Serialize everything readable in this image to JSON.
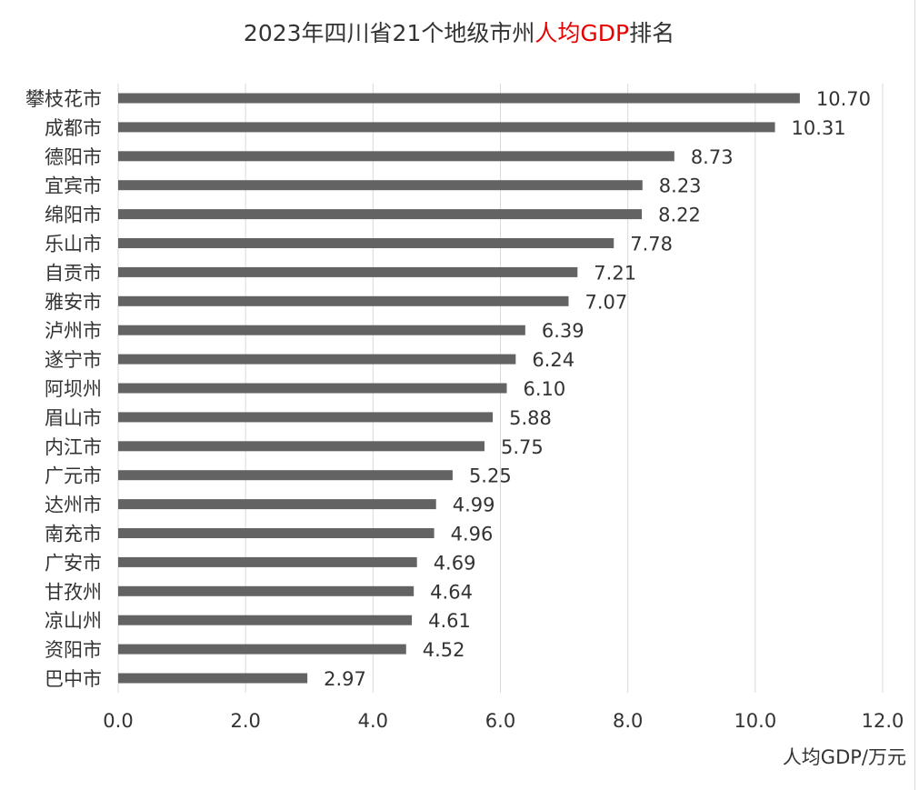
{
  "chart_data": {
    "type": "bar",
    "orientation": "horizontal",
    "title_parts": [
      {
        "text": "2023年四川省21个地级市州",
        "color": "#333333"
      },
      {
        "text": "人均GDP",
        "color": "#e60000"
      },
      {
        "text": "排名",
        "color": "#333333"
      }
    ],
    "categories": [
      "攀枝花市",
      "成都市",
      "德阳市",
      "宜宾市",
      "绵阳市",
      "乐山市",
      "自贡市",
      "雅安市",
      "泸州市",
      "遂宁市",
      "阿坝州",
      "眉山市",
      "内江市",
      "广元市",
      "达州市",
      "南充市",
      "广安市",
      "甘孜州",
      "凉山州",
      "资阳市",
      "巴中市"
    ],
    "values": [
      10.7,
      10.31,
      8.73,
      8.23,
      8.22,
      7.78,
      7.21,
      7.07,
      6.39,
      6.24,
      6.1,
      5.88,
      5.75,
      5.25,
      4.99,
      4.96,
      4.69,
      4.64,
      4.61,
      4.52,
      2.97
    ],
    "value_labels": [
      "10.70",
      "10.31",
      "8.73",
      "8.23",
      "8.22",
      "7.78",
      "7.21",
      "7.07",
      "6.39",
      "6.24",
      "6.10",
      "5.88",
      "5.75",
      "5.25",
      "4.99",
      "4.96",
      "4.69",
      "4.64",
      "4.61",
      "4.52",
      "2.97"
    ],
    "x_ticks": [
      0,
      2,
      4,
      6,
      8,
      10,
      12
    ],
    "x_tick_labels": [
      "0.0",
      "2.0",
      "4.0",
      "6.0",
      "8.0",
      "10.0",
      "12.0"
    ],
    "xlim": [
      0,
      12
    ],
    "xlabel": "人均GDP/万元",
    "ylabel": "",
    "grid": "vertical",
    "bar_color": "#636363",
    "grid_color": "#d9d9d9",
    "text_color": "#333333"
  }
}
